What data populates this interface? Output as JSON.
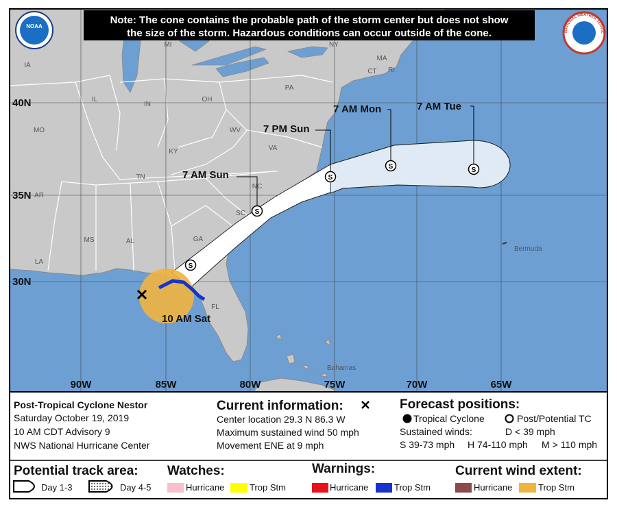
{
  "note": [
    "Note: The cone contains the probable path of the storm center but does not show",
    "the size of the storm. Hazardous conditions can occur outside of the cone."
  ],
  "logos": {
    "noaa": "NOAA",
    "nws": "NATIONAL WEATHER SERVICE"
  },
  "map": {
    "state_labels": [
      "IA",
      "MI",
      "NY",
      "MA",
      "CT",
      "RI",
      "PA",
      "IL",
      "IN",
      "OH",
      "MO",
      "WV",
      "KY",
      "VA",
      "TN",
      "NC",
      "AR",
      "SC",
      "GA",
      "MS",
      "AL",
      "LA",
      "FL"
    ],
    "places": [
      "Bermuda",
      "Bahamas"
    ],
    "lat_labels": [
      "40N",
      "35N",
      "30N"
    ],
    "lon_labels": [
      "90W",
      "85W",
      "80W",
      "75W",
      "70W",
      "65W"
    ],
    "forecast_labels": [
      "10 AM Sat",
      "7 AM Sun",
      "7 PM Sun",
      "7 AM Mon",
      "7 AM Tue"
    ],
    "marker_symbol": "S"
  },
  "info": {
    "storm": "Post-Tropical Cyclone Nestor",
    "date": "Saturday October 19, 2019",
    "advisory": "10 AM CDT Advisory 9",
    "source": "NWS National Hurricane Center"
  },
  "current": {
    "title": "Current information:",
    "center": "Center location 29.3 N 86.3 W",
    "wind": "Maximum sustained wind 50 mph",
    "movement": "Movement ENE at 9 mph"
  },
  "forecast": {
    "title": "Forecast positions:",
    "tropical": "Tropical Cyclone",
    "post": "Post/Potential TC",
    "winds": "Sustained winds:",
    "d": "D < 39 mph",
    "s": "S 39-73 mph",
    "h": "H 74-110 mph",
    "m": "M > 110 mph"
  },
  "legend": {
    "track_title": "Potential track area:",
    "day13": "Day 1-3",
    "day45": "Day 4-5",
    "watches": "Watches:",
    "warnings": "Warnings:",
    "extent": "Current wind extent:",
    "hurricane": "Hurricane",
    "trop_stm": "Trop Stm"
  }
}
